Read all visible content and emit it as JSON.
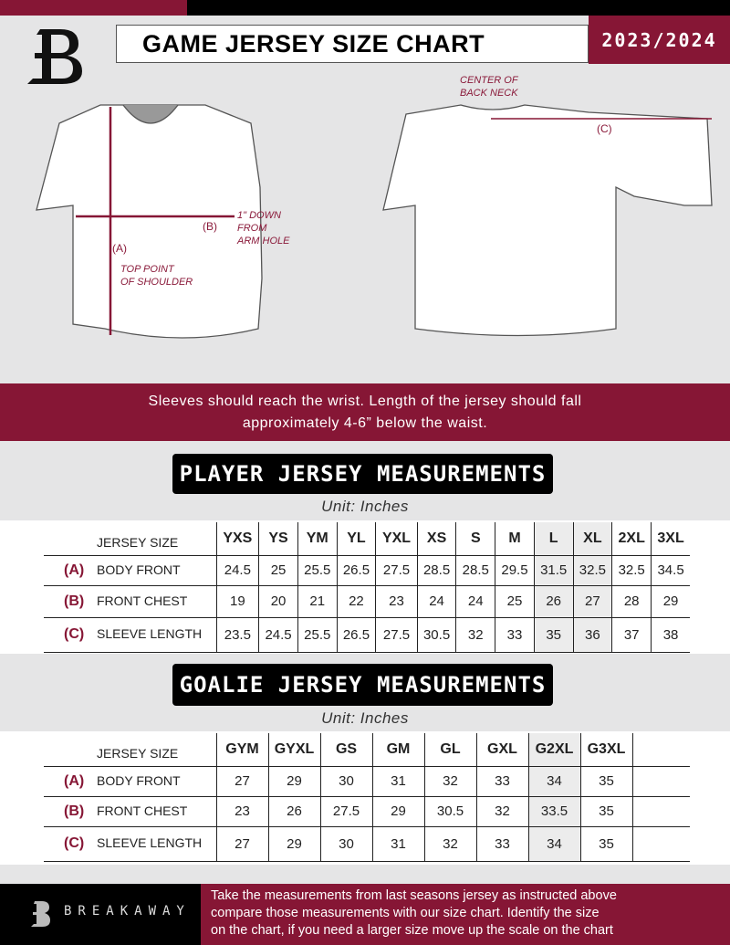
{
  "header": {
    "title": "GAME JERSEY SIZE CHART",
    "season": "2023/2024"
  },
  "diagram": {
    "label_a": "(A)",
    "label_b": "(B)",
    "label_c": "(C)",
    "note_a": [
      "TOP POINT",
      "OF SHOULDER"
    ],
    "note_b": [
      "1\" DOWN",
      "FROM",
      "ARM HOLE"
    ],
    "note_c": [
      "CENTER OF",
      "BACK NECK"
    ]
  },
  "instructions": [
    "Sleeves should reach the wrist. Length of the jersey should fall",
    "approximately 4-6” below the waist."
  ],
  "player": {
    "title": "PLAYER JERSEY MEASUREMENTS",
    "unit": "Unit: Inches",
    "size_label": "JERSEY SIZE",
    "sizes": [
      "YXS",
      "YS",
      "YM",
      "YL",
      "YXL",
      "XS",
      "S",
      "M",
      "L",
      "XL",
      "2XL",
      "3XL"
    ],
    "rows": [
      {
        "code": "(A)",
        "name": "BODY FRONT",
        "values": [
          "24.5",
          "25",
          "25.5",
          "26.5",
          "27.5",
          "28.5",
          "28.5",
          "29.5",
          "31.5",
          "32.5",
          "32.5",
          "34.5"
        ]
      },
      {
        "code": "(B)",
        "name": "FRONT CHEST",
        "values": [
          "19",
          "20",
          "21",
          "22",
          "23",
          "24",
          "24",
          "25",
          "26",
          "27",
          "28",
          "29"
        ]
      },
      {
        "code": "(C)",
        "name": "SLEEVE LENGTH",
        "values": [
          "23.5",
          "24.5",
          "25.5",
          "26.5",
          "27.5",
          "30.5",
          "32",
          "33",
          "35",
          "36",
          "37",
          "38"
        ]
      }
    ]
  },
  "goalie": {
    "title": "GOALIE JERSEY MEASUREMENTS",
    "unit": "Unit: Inches",
    "size_label": "JERSEY SIZE",
    "sizes": [
      "GYM",
      "GYXL",
      "GS",
      "GM",
      "GL",
      "GXL",
      "G2XL",
      "G3XL",
      ""
    ],
    "rows": [
      {
        "code": "(A)",
        "name": "BODY FRONT",
        "values": [
          "27",
          "29",
          "30",
          "31",
          "32",
          "33",
          "34",
          "35",
          ""
        ]
      },
      {
        "code": "(B)",
        "name": "FRONT CHEST",
        "values": [
          "23",
          "26",
          "27.5",
          "29",
          "30.5",
          "32",
          "33.5",
          "35",
          ""
        ]
      },
      {
        "code": "(C)",
        "name": "SLEEVE LENGTH",
        "values": [
          "27",
          "29",
          "30",
          "31",
          "32",
          "33",
          "34",
          "35",
          ""
        ]
      }
    ]
  },
  "footer": {
    "brand": "BREAKAWAY",
    "text": [
      "Take the measurements from last seasons jersey as instructed above",
      "compare those measurements  with our size chart. Identify the size",
      "on the chart, if you need a larger size move up the scale on the chart"
    ]
  },
  "colors": {
    "accent": "#861635",
    "dark": "#000000",
    "background": "#e5e5e6"
  }
}
